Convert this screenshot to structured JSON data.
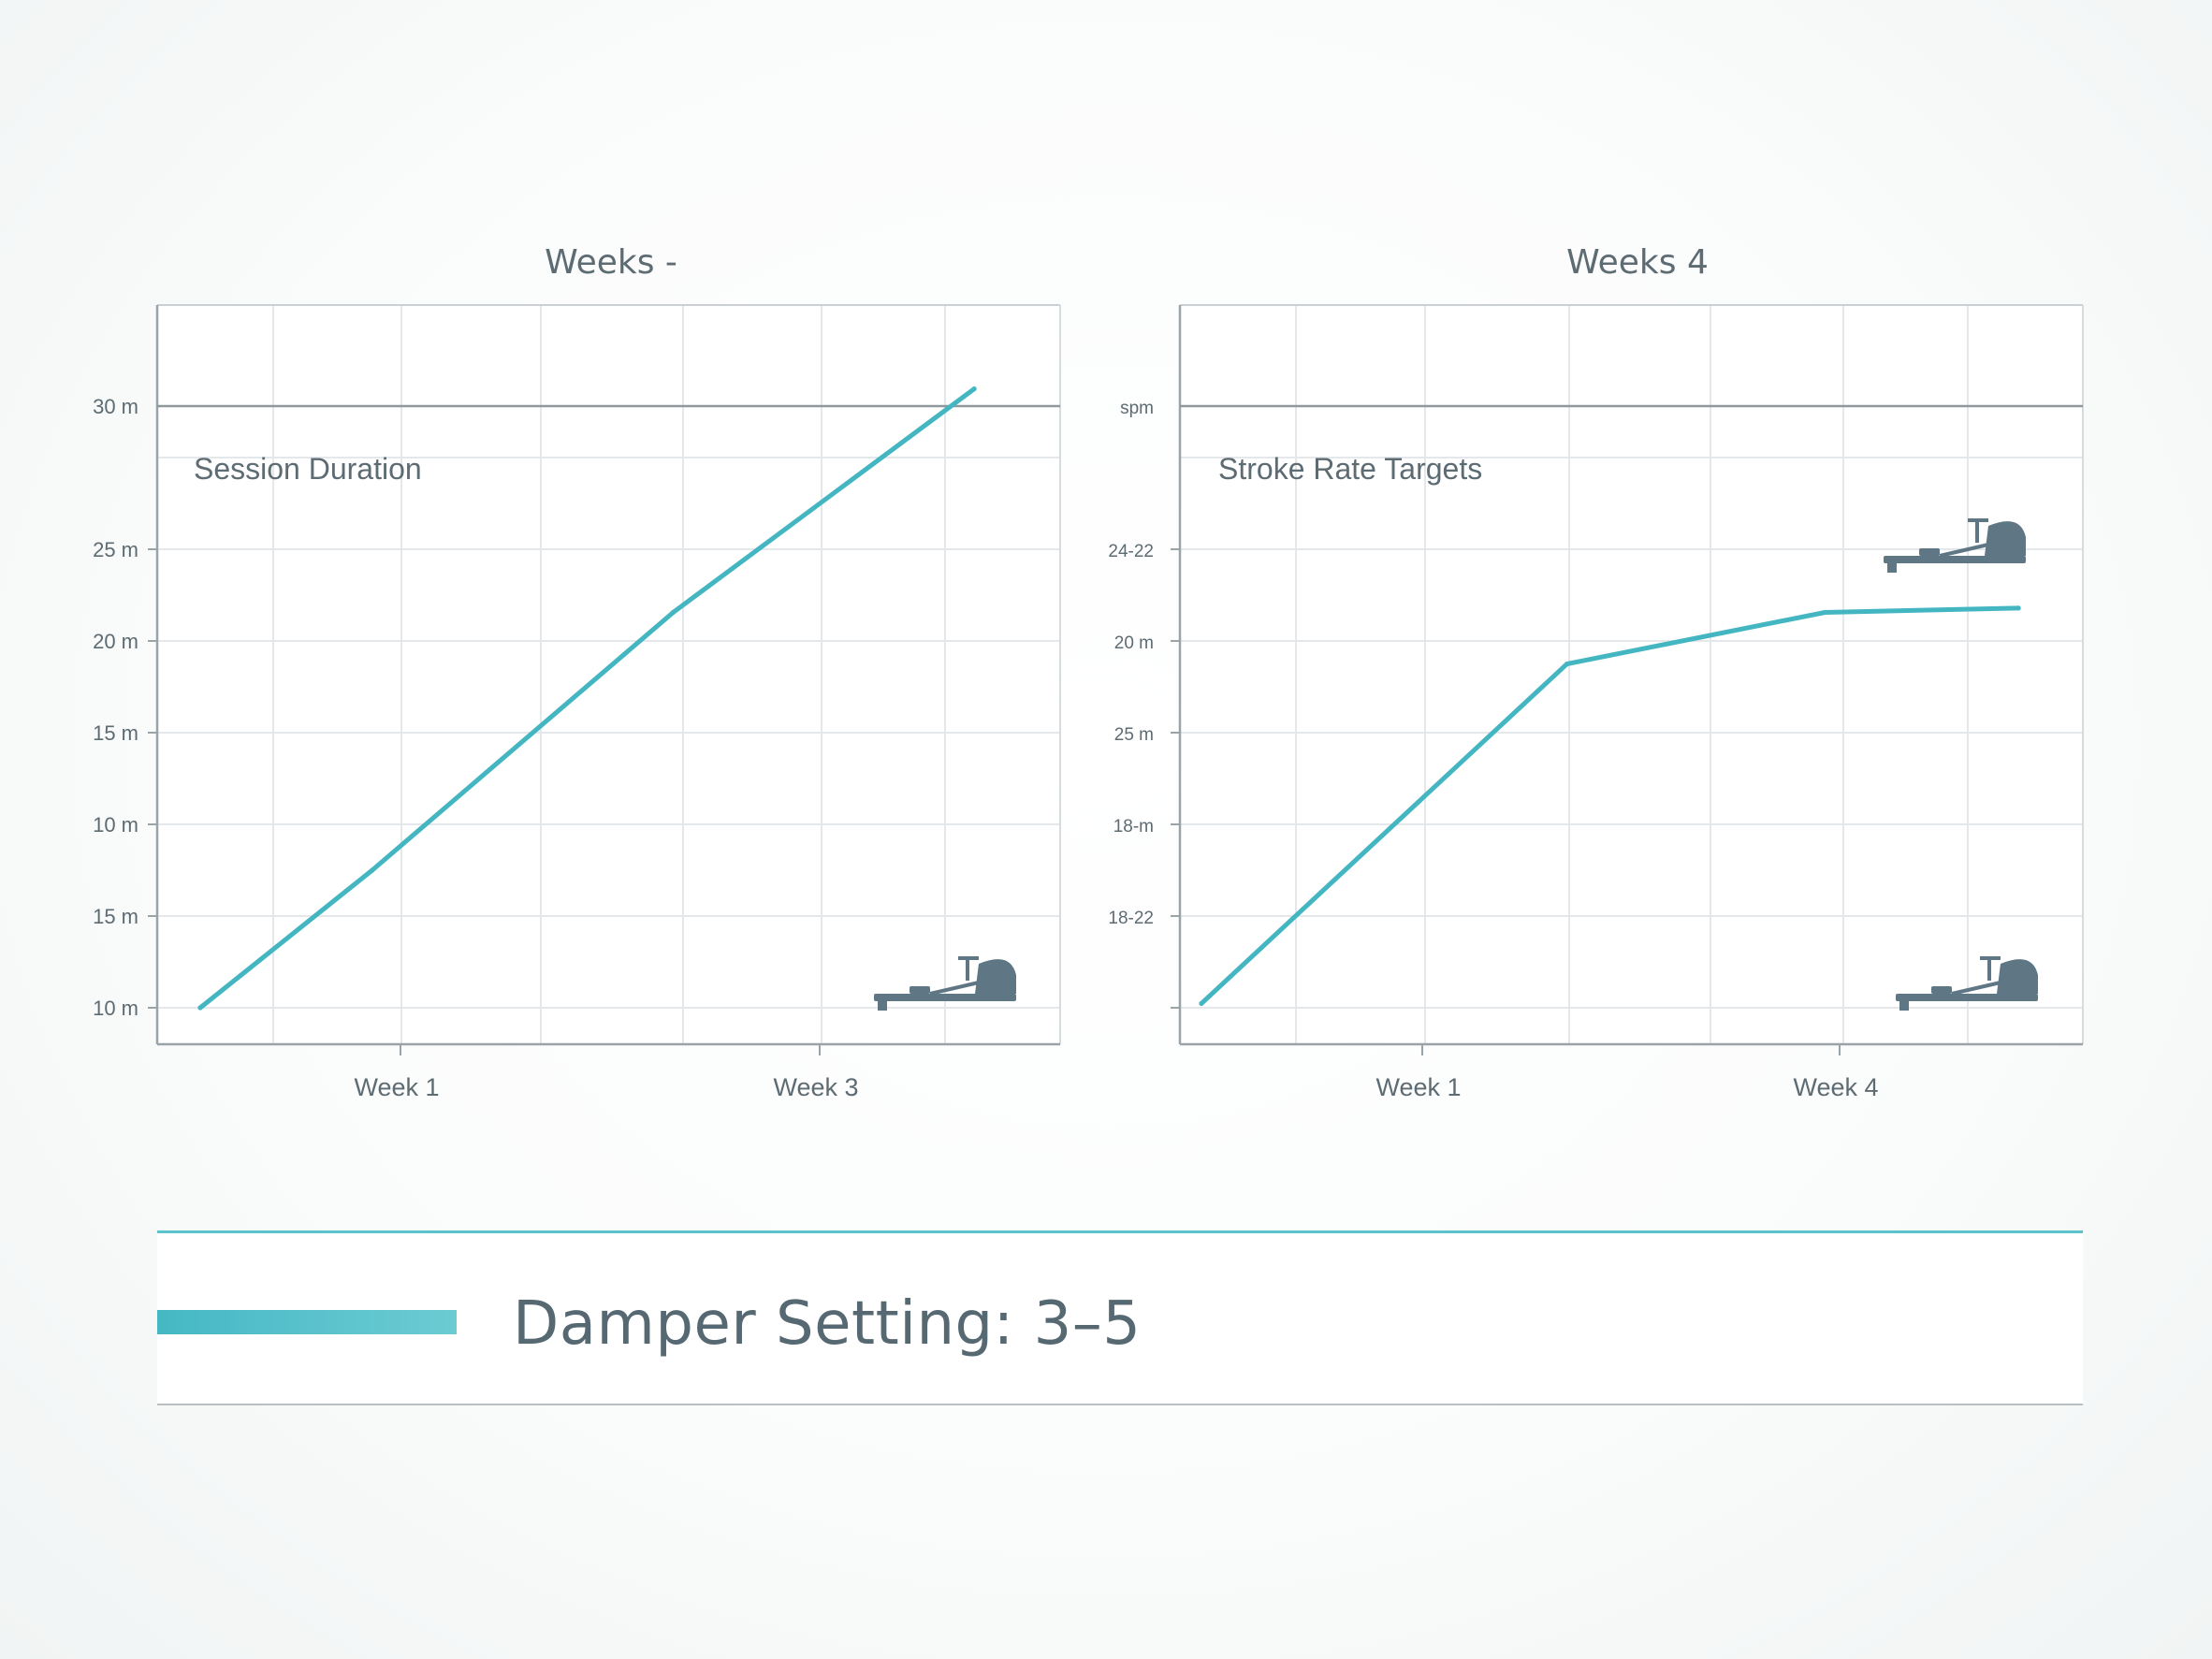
{
  "colors": {
    "line": "#43b6c2",
    "axis": "#9aa3a7",
    "grid": "#e4e8ea",
    "text": "#5d6b73",
    "icon": "#5f7784"
  },
  "icons": [
    "rowing-machine-icon"
  ],
  "chart_data": [
    {
      "type": "line",
      "title": "Weeks -",
      "subtitle": "Session Duration",
      "y_tick_labels": [
        "10 m",
        "15 m",
        "10 m",
        "15 m",
        "20 m",
        "25 m",
        "30 m"
      ],
      "x_tick_labels": [
        "Week 1",
        "Week 3"
      ],
      "series": [
        {
          "x": [
            0.6,
            1,
            1.7,
            2.4
          ],
          "y": [
            0.0,
            1.6,
            4.6,
            7.2
          ]
        }
      ],
      "ylim": [
        0,
        6
      ],
      "xlim": [
        0.5,
        2.6
      ],
      "grid": true
    },
    {
      "type": "line",
      "title": "Weeks 4",
      "subtitle": "Stroke Rate Targets",
      "y_tick_labels": [
        "",
        "18-22",
        "18-m",
        "25 m",
        "20 m",
        "24-22",
        "spm"
      ],
      "x_tick_labels": [
        "Week 1",
        "Week 4"
      ],
      "series": [
        {
          "x": [
            0.55,
            1.4,
            2,
            2.45
          ],
          "y": [
            0.05,
            4.0,
            4.6,
            4.65
          ]
        }
      ],
      "ylim": [
        0,
        6
      ],
      "xlim": [
        0.5,
        2.6
      ],
      "grid": true
    }
  ],
  "legend": {
    "label": "Damper Setting: 3–5"
  }
}
